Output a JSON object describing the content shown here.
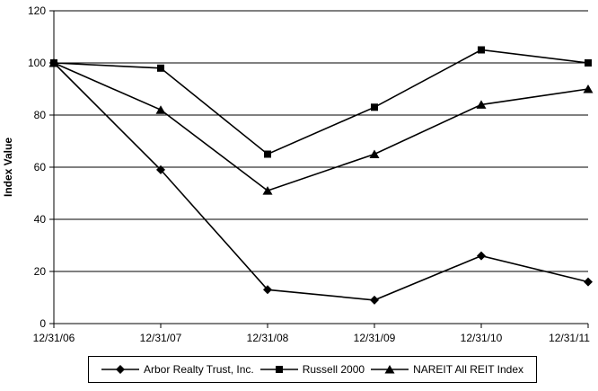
{
  "chart_data": {
    "type": "line",
    "title": "",
    "xlabel": "",
    "ylabel": "Index Value",
    "ylim": [
      0,
      120
    ],
    "ytick_step": 20,
    "grid": true,
    "legend_position": "bottom",
    "line_color": "#000000",
    "grid_color": "#000000",
    "background": "#ffffff",
    "categories": [
      "12/31/06",
      "12/31/07",
      "12/31/08",
      "12/31/09",
      "12/31/10",
      "12/31/11"
    ],
    "series": [
      {
        "name": "Arbor Realty Trust, Inc.",
        "marker": "diamond",
        "values": [
          100,
          59,
          13,
          9,
          26,
          16
        ]
      },
      {
        "name": "Russell 2000",
        "marker": "square",
        "values": [
          100,
          98,
          65,
          83,
          105,
          100
        ]
      },
      {
        "name": "NAREIT All REIT Index",
        "marker": "triangle",
        "values": [
          100,
          82,
          51,
          65,
          84,
          90
        ]
      }
    ]
  }
}
